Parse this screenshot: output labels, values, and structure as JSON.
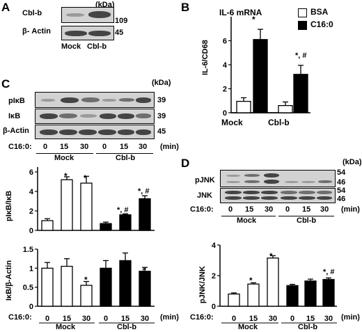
{
  "panel_a": {
    "letter": "A",
    "kda": "(kDa)",
    "row_labels": [
      "Cbl-b",
      "β- Actin"
    ],
    "mw": [
      "109",
      "45"
    ],
    "lanes": [
      "Mock",
      "Cbl-b"
    ]
  },
  "panel_b": {
    "letter": "B",
    "title": "IL-6 mRNA",
    "legend": [
      "BSA",
      "C16:0"
    ],
    "sig": [
      "*",
      "*, #"
    ]
  },
  "panel_c": {
    "letter": "C",
    "kda": "(kDa)",
    "row_labels": [
      "pIκB",
      "IκB",
      "β-Actin"
    ],
    "mw": [
      "39",
      "39",
      "45"
    ],
    "treat_label": "C16:0:",
    "doses": [
      "0",
      "15",
      "30",
      "0",
      "15",
      "30"
    ],
    "unit": "(min)",
    "groups": [
      "Mock",
      "Cbl-b"
    ],
    "sig_top": [
      "*",
      "*",
      "*, #",
      "*, #"
    ],
    "sig_bot": [
      "*",
      "#"
    ]
  },
  "panel_d": {
    "letter": "D",
    "kda": "(kDa)",
    "row_labels": [
      "pJNK",
      "JNK"
    ],
    "mw": [
      "54",
      "46",
      "54",
      "46"
    ],
    "treat_label": "C16:0:",
    "doses": [
      "0",
      "15",
      "30",
      "0",
      "15",
      "30"
    ],
    "unit": "(min)",
    "groups": [
      "Mock",
      "Cbl-b"
    ],
    "sig": [
      "*",
      "*",
      "*, #"
    ]
  },
  "chart_data": [
    {
      "type": "bar",
      "panel": "B",
      "title": "IL-6 mRNA",
      "categories": [
        "Mock",
        "Cbl-b"
      ],
      "series": [
        {
          "name": "BSA",
          "values": [
            0.95,
            0.6
          ],
          "errors": [
            0.3,
            0.3
          ],
          "color": "#ffffff"
        },
        {
          "name": "C16:0",
          "values": [
            6.1,
            3.2
          ],
          "errors": [
            0.85,
            0.75
          ],
          "color": "#000000"
        }
      ],
      "ylabel": "IL-6/CD68",
      "ylim": [
        0,
        8
      ],
      "yticks": [
        "0",
        "2",
        "4",
        "6"
      ],
      "legend_position": "top-right"
    },
    {
      "type": "bar",
      "panel": "C-top",
      "categories": [
        "0",
        "15",
        "30",
        "0",
        "15",
        "30"
      ],
      "groups": [
        "Mock",
        "Mock",
        "Mock",
        "Cbl-b",
        "Cbl-b",
        "Cbl-b"
      ],
      "values": [
        1.0,
        5.2,
        4.85,
        0.7,
        1.6,
        3.25
      ],
      "errors": [
        0.2,
        0.3,
        0.7,
        0.15,
        0.1,
        0.3
      ],
      "fill": [
        "#ffffff",
        "#ffffff",
        "#ffffff",
        "#000000",
        "#000000",
        "#000000"
      ],
      "ylabel": "pIκB/IκB",
      "ylim": [
        0,
        6.5
      ],
      "yticks": [
        "0",
        "2",
        "4",
        "6"
      ]
    },
    {
      "type": "bar",
      "panel": "C-bottom",
      "categories": [
        "0",
        "15",
        "30",
        "0",
        "15",
        "30"
      ],
      "groups": [
        "Mock",
        "Mock",
        "Mock",
        "Cbl-b",
        "Cbl-b",
        "Cbl-b"
      ],
      "values": [
        1.0,
        1.05,
        0.55,
        1.0,
        1.2,
        0.92
      ],
      "errors": [
        0.15,
        0.2,
        0.1,
        0.2,
        0.2,
        0.1
      ],
      "fill": [
        "#ffffff",
        "#ffffff",
        "#ffffff",
        "#000000",
        "#000000",
        "#000000"
      ],
      "ylabel": "IκB/β-Actin",
      "ylim": [
        0,
        1.5
      ],
      "yticks": [
        "0",
        "0.5",
        "1",
        "1.5"
      ]
    },
    {
      "type": "bar",
      "panel": "D",
      "categories": [
        "0",
        "15",
        "30",
        "0",
        "15",
        "30"
      ],
      "groups": [
        "Mock",
        "Mock",
        "Mock",
        "Cbl-b",
        "Cbl-b",
        "Cbl-b"
      ],
      "values": [
        0.8,
        1.45,
        3.15,
        1.35,
        1.65,
        1.75
      ],
      "errors": [
        0.07,
        0.08,
        0.15,
        0.08,
        0.12,
        0.1
      ],
      "fill": [
        "#ffffff",
        "#ffffff",
        "#ffffff",
        "#000000",
        "#000000",
        "#000000"
      ],
      "ylabel": "pJNK/JNK",
      "ylim": [
        0,
        4
      ],
      "yticks": [
        "0",
        "2",
        "4"
      ]
    }
  ]
}
